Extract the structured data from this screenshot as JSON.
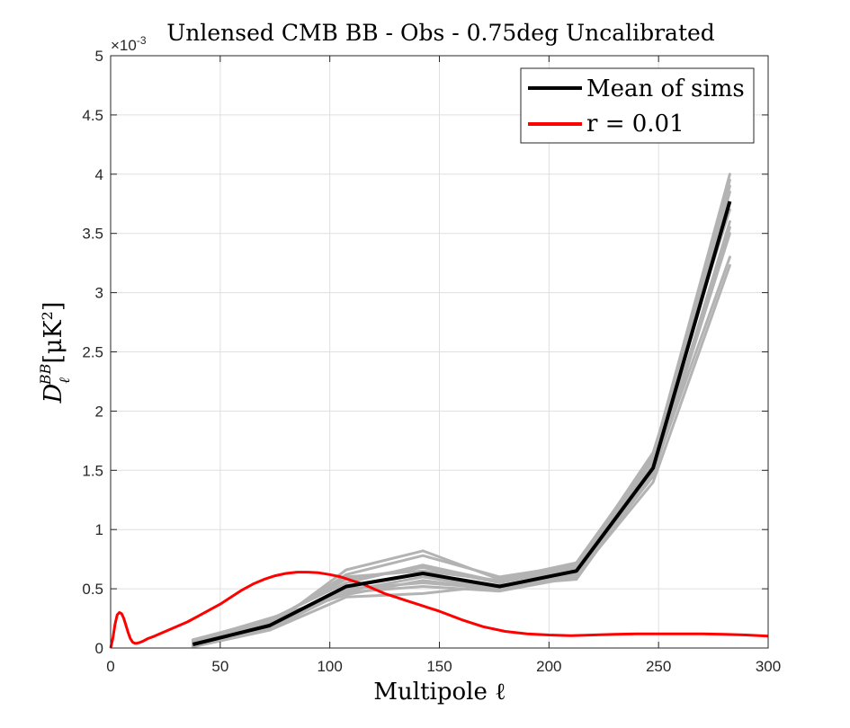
{
  "chart_data": {
    "type": "line",
    "title": "Unlensed CMB BB - Obs - 0.75deg Uncalibrated",
    "xlabel": "Multipole ℓ",
    "ylabel": {
      "base": "D",
      "sub": "ℓ",
      "sup": "BB",
      "unit": "[μK",
      "unit_sup": "2",
      "close": "]"
    },
    "xlim": [
      0,
      300
    ],
    "ylim": [
      0,
      5
    ],
    "y_exponent_label": {
      "base": "×10",
      "exp": "-3"
    },
    "grid": true,
    "legend_position": "top-right",
    "xticks": [
      "0",
      "50",
      "100",
      "150",
      "200",
      "250",
      "300"
    ],
    "yticks": [
      "0",
      "0.5",
      "1",
      "1.5",
      "2",
      "2.5",
      "3",
      "3.5",
      "4",
      "4.5",
      "5"
    ],
    "colors": {
      "mean": "#000000",
      "r": "#ff0000",
      "sims": "#b3b3b3"
    },
    "series": [
      {
        "name": "Mean of sims",
        "x": [
          37.5,
          72.5,
          107.5,
          142.5,
          177.5,
          212.5,
          247.5,
          282.5
        ],
        "y": [
          0.03,
          0.19,
          0.52,
          0.63,
          0.52,
          0.65,
          1.52,
          3.77
        ]
      },
      {
        "name": "r = 0.01",
        "x": [
          0,
          1,
          2,
          3,
          4,
          5,
          6,
          7,
          8,
          9,
          10,
          11,
          12,
          13,
          15,
          17,
          20,
          25,
          30,
          35,
          40,
          45,
          50,
          55,
          60,
          65,
          70,
          75,
          80,
          85,
          90,
          95,
          100,
          105,
          110,
          115,
          120,
          125,
          130,
          135,
          140,
          145,
          150,
          160,
          170,
          180,
          190,
          200,
          210,
          220,
          230,
          240,
          250,
          260,
          270,
          280,
          290,
          300
        ],
        "y": [
          0,
          0.08,
          0.2,
          0.28,
          0.3,
          0.29,
          0.25,
          0.19,
          0.13,
          0.08,
          0.05,
          0.04,
          0.04,
          0.045,
          0.06,
          0.08,
          0.1,
          0.14,
          0.18,
          0.22,
          0.27,
          0.32,
          0.37,
          0.43,
          0.49,
          0.54,
          0.58,
          0.61,
          0.63,
          0.64,
          0.64,
          0.635,
          0.62,
          0.6,
          0.57,
          0.54,
          0.5,
          0.46,
          0.43,
          0.4,
          0.37,
          0.34,
          0.31,
          0.24,
          0.18,
          0.14,
          0.12,
          0.11,
          0.105,
          0.11,
          0.115,
          0.12,
          0.12,
          0.12,
          0.12,
          0.115,
          0.11,
          0.1
        ]
      }
    ],
    "sims": [
      [
        0.02,
        0.16,
        0.48,
        0.6,
        0.5,
        0.62,
        1.45,
        3.5
      ],
      [
        0.05,
        0.23,
        0.58,
        0.68,
        0.55,
        0.68,
        1.6,
        3.95
      ],
      [
        0.03,
        0.18,
        0.66,
        0.82,
        0.58,
        0.72,
        1.62,
        4.0
      ],
      [
        0.04,
        0.2,
        0.62,
        0.78,
        0.6,
        0.7,
        1.55,
        3.85
      ],
      [
        0.06,
        0.25,
        0.45,
        0.57,
        0.49,
        0.61,
        1.4,
        3.23
      ],
      [
        0.01,
        0.15,
        0.43,
        0.46,
        0.53,
        0.58,
        1.48,
        3.3
      ],
      [
        0.07,
        0.24,
        0.55,
        0.7,
        0.56,
        0.66,
        1.58,
        3.9
      ],
      [
        0.03,
        0.17,
        0.5,
        0.55,
        0.5,
        0.63,
        1.5,
        3.55
      ],
      [
        0.05,
        0.22,
        0.6,
        0.65,
        0.57,
        0.69,
        1.65,
        3.7
      ],
      [
        0.02,
        0.19,
        0.47,
        0.52,
        0.48,
        0.6,
        1.46,
        3.6
      ]
    ]
  }
}
